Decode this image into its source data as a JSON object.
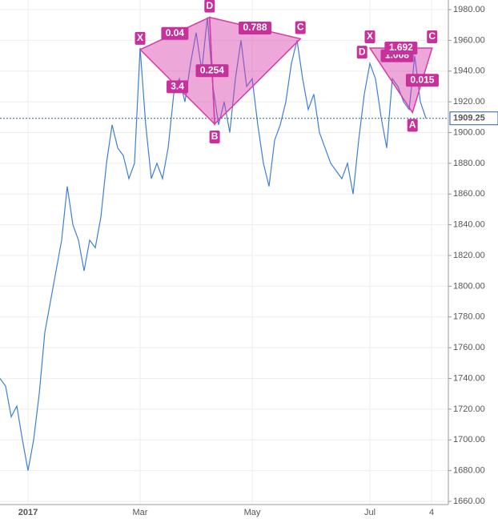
{
  "chart_data": {
    "type": "line",
    "categories": [
      null,
      null,
      null,
      null,
      null,
      "2017",
      null,
      null,
      null,
      null,
      null,
      null,
      null,
      null,
      null,
      null,
      null,
      null,
      null,
      null,
      null,
      null,
      null,
      null,
      null,
      "Mar",
      null,
      null,
      null,
      null,
      null,
      null,
      null,
      null,
      null,
      null,
      null,
      null,
      null,
      null,
      null,
      null,
      null,
      null,
      null,
      "May",
      null,
      null,
      null,
      null,
      null,
      null,
      null,
      null,
      null,
      null,
      null,
      null,
      null,
      null,
      null,
      null,
      null,
      null,
      null,
      null,
      "Jul",
      null,
      null,
      null,
      null,
      null,
      null,
      null,
      null,
      null,
      null,
      "4"
    ],
    "series": [
      {
        "color": "#3f7fd6",
        "values": [
          1740,
          1735,
          1715,
          1722,
          1700,
          1680,
          1700,
          1730,
          1770,
          1790,
          1810,
          1830,
          1865,
          1840,
          1830,
          1810,
          1830,
          1825,
          1845,
          1880,
          1905,
          1890,
          1885,
          1870,
          1880,
          1955,
          1905,
          1870,
          1880,
          1870,
          1890,
          1925,
          1935,
          1920,
          1945,
          1965,
          1940,
          1975,
          1930,
          1905,
          1920,
          1900,
          1935,
          1960,
          1930,
          1935,
          1905,
          1880,
          1865,
          1895,
          1905,
          1920,
          1945,
          1960,
          1935,
          1915,
          1925,
          1900,
          1890,
          1880,
          1875,
          1870,
          1880,
          1860,
          1895,
          1925,
          1945,
          1935,
          1910,
          1890,
          1935,
          1930,
          1920,
          1915,
          1950,
          1920,
          1909.25,
          null
        ]
      }
    ],
    "ylim": [
      1655,
      1985
    ],
    "yticks": [
      {
        "value": 1660,
        "label": "1660.00"
      },
      {
        "value": 1680,
        "label": "1680.00"
      },
      {
        "value": 1700,
        "label": "1700.00"
      },
      {
        "value": 1720,
        "label": "1720.00"
      },
      {
        "value": 1740,
        "label": "1740.00"
      },
      {
        "value": 1760,
        "label": "1760.00"
      },
      {
        "value": 1780,
        "label": "1780.00"
      },
      {
        "value": 1800,
        "label": "1800.00"
      },
      {
        "value": 1820,
        "label": "1820.00"
      },
      {
        "value": 1840,
        "label": "1840.00"
      },
      {
        "value": 1860,
        "label": "1860.00"
      },
      {
        "value": 1880,
        "label": "1880.00"
      },
      {
        "value": 1900,
        "label": "1900.00"
      },
      {
        "value": 1920,
        "label": "1920.00"
      },
      {
        "value": 1940,
        "label": "1940.00"
      },
      {
        "value": 1960,
        "label": "1960.00"
      },
      {
        "value": 1980,
        "label": "1980.00"
      }
    ],
    "grid": true,
    "last_value": 1909.25,
    "patterns": [
      {
        "color": "#d63ca8",
        "points": [
          {
            "label": "X",
            "x": 25,
            "y": 1954
          },
          {
            "label": "D",
            "x": 37.4,
            "y": 1975
          },
          {
            "label": "B",
            "x": 38.3,
            "y": 1905.5
          },
          {
            "label": "C",
            "x": 53.6,
            "y": 1961
          }
        ],
        "ratios": [
          "0.04",
          "3.4",
          "0.254",
          "0.788"
        ]
      },
      {
        "color": "#d63ca8",
        "points": [
          {
            "label": "X",
            "x": 66,
            "y": 1955
          },
          {
            "label": "D",
            "x": 64.6,
            "y": 1945
          },
          {
            "label": "A",
            "x": 73.6,
            "y": 1913
          },
          {
            "label": "C",
            "x": 77.1,
            "y": 1955
          }
        ],
        "ratios": [
          "1.008",
          "1.692",
          "0.015"
        ]
      }
    ]
  }
}
